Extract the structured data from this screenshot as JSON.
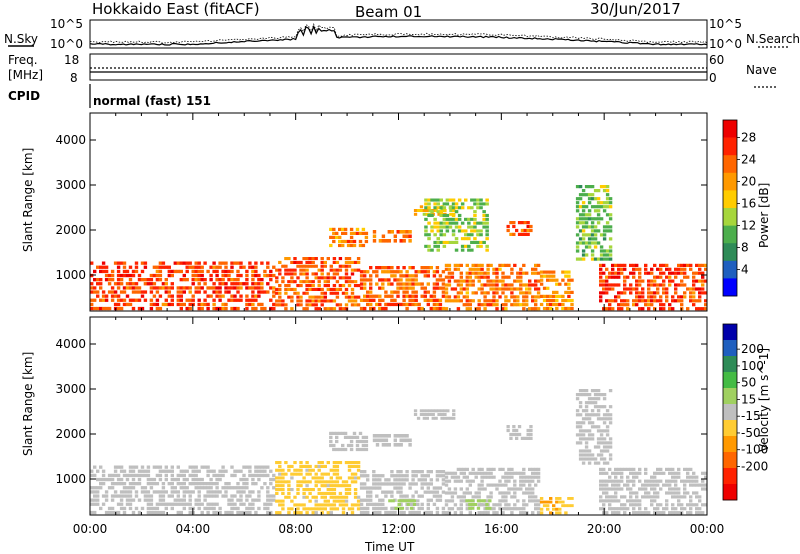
{
  "header": {
    "station": "Hokkaido East (fitACF)",
    "beam": "Beam 01",
    "date": "30/Jun/2017"
  },
  "nsky_panel": {
    "left_label": "N.Sky",
    "right_label": "N.Search",
    "ticks": [
      "10^5",
      "10^0"
    ]
  },
  "freq_panel": {
    "left_label_1": "Freq.",
    "left_label_2": "[MHz]",
    "left_ticks": [
      "18",
      "8"
    ],
    "right_label": "Nave",
    "right_ticks": [
      "60",
      "0"
    ]
  },
  "cpid": {
    "label": "CPID",
    "value": "normal (fast) 151"
  },
  "colors": {
    "power_scale": [
      "#0000ff",
      "#1f5fbf",
      "#2e8b57",
      "#4cae4c",
      "#a6d63c",
      "#ffcc00",
      "#ff9900",
      "#ff6600",
      "#ff2200",
      "#ee0000"
    ],
    "velocity_scale": [
      "#0000aa",
      "#1f5fbf",
      "#2e8b57",
      "#44bb44",
      "#a0d060",
      "#bfbfbf",
      "#ffcc33",
      "#ff9900",
      "#ff6600",
      "#ff2200",
      "#ee0000"
    ]
  },
  "chart_data": [
    {
      "type": "heatmap",
      "panel": "power",
      "xlabel": "Time UT",
      "ylabel": "Slant Range [km]",
      "xlim": [
        0,
        24
      ],
      "ylim": [
        200,
        4600
      ],
      "y_ticks": [
        "1000",
        "2000",
        "3000",
        "4000"
      ],
      "x_ticks": [
        "00:00",
        "04:00",
        "08:00",
        "12:00",
        "16:00",
        "20:00",
        "00:00"
      ],
      "colorbar": {
        "label": "Power [dB]",
        "ticks": [
          "4",
          "8",
          "12",
          "16",
          "20",
          "24",
          "28"
        ],
        "range": [
          0,
          32
        ]
      },
      "regions": [
        {
          "t": [
            0.0,
            7.2
          ],
          "r": [
            200,
            1300
          ],
          "value": 26
        },
        {
          "t": [
            7.2,
            10.5
          ],
          "r": [
            200,
            1400
          ],
          "value": 25
        },
        {
          "t": [
            10.5,
            13.8
          ],
          "r": [
            200,
            1200
          ],
          "value": 24
        },
        {
          "t": [
            13.8,
            17.5
          ],
          "r": [
            200,
            1250
          ],
          "value": 23
        },
        {
          "t": [
            17.5,
            18.8
          ],
          "r": [
            200,
            1100
          ],
          "value": 22
        },
        {
          "t": [
            19.8,
            24.0
          ],
          "r": [
            200,
            1250
          ],
          "value": 26
        },
        {
          "t": [
            9.3,
            10.8
          ],
          "r": [
            1600,
            2050
          ],
          "value": 22
        },
        {
          "t": [
            11.0,
            12.5
          ],
          "r": [
            1700,
            2000
          ],
          "value": 24
        },
        {
          "t": [
            12.6,
            14.2
          ],
          "r": [
            2300,
            2550
          ],
          "value": 18
        },
        {
          "t": [
            16.2,
            17.2
          ],
          "r": [
            1850,
            2200
          ],
          "value": 25
        },
        {
          "t": [
            18.9,
            20.3
          ],
          "r": [
            1300,
            3000
          ],
          "value": 13
        },
        {
          "t": [
            13.0,
            15.5
          ],
          "r": [
            1500,
            2700
          ],
          "value": 14
        }
      ]
    },
    {
      "type": "heatmap",
      "panel": "velocity",
      "xlabel": "Time UT",
      "ylabel": "Slant Range [km]",
      "xlim": [
        0,
        24
      ],
      "ylim": [
        200,
        4600
      ],
      "y_ticks": [
        "1000",
        "2000",
        "3000",
        "4000"
      ],
      "x_ticks": [
        "00:00",
        "04:00",
        "08:00",
        "12:00",
        "16:00",
        "20:00",
        "00:00"
      ],
      "colorbar": {
        "label": "Velocity [m s^-1]",
        "ticks": [
          "200",
          "100",
          "50",
          "15",
          "-15",
          "-50",
          "-100",
          "-200"
        ],
        "range": [
          -250,
          250
        ]
      },
      "regions": [
        {
          "t": [
            0.0,
            7.2
          ],
          "r": [
            200,
            1300
          ],
          "value": 0
        },
        {
          "t": [
            7.2,
            10.5
          ],
          "r": [
            200,
            1400
          ],
          "value": -40
        },
        {
          "t": [
            10.5,
            13.8
          ],
          "r": [
            200,
            1200
          ],
          "value": 0
        },
        {
          "t": [
            13.8,
            17.5
          ],
          "r": [
            200,
            1250
          ],
          "value": 0
        },
        {
          "t": [
            17.5,
            18.8
          ],
          "r": [
            200,
            600
          ],
          "value": -60
        },
        {
          "t": [
            19.8,
            24.0
          ],
          "r": [
            200,
            1250
          ],
          "value": 0
        },
        {
          "t": [
            9.3,
            10.8
          ],
          "r": [
            1600,
            2050
          ],
          "value": 0
        },
        {
          "t": [
            11.0,
            12.5
          ],
          "r": [
            1700,
            2000
          ],
          "value": 0
        },
        {
          "t": [
            12.6,
            14.2
          ],
          "r": [
            2300,
            2550
          ],
          "value": 0
        },
        {
          "t": [
            16.2,
            17.2
          ],
          "r": [
            1850,
            2200
          ],
          "value": 0
        },
        {
          "t": [
            18.9,
            20.3
          ],
          "r": [
            1300,
            3000
          ],
          "value": 0
        },
        {
          "t": [
            11.6,
            12.8
          ],
          "r": [
            300,
            550
          ],
          "value": 40
        },
        {
          "t": [
            14.6,
            15.6
          ],
          "r": [
            300,
            550
          ],
          "value": 40
        }
      ]
    }
  ]
}
